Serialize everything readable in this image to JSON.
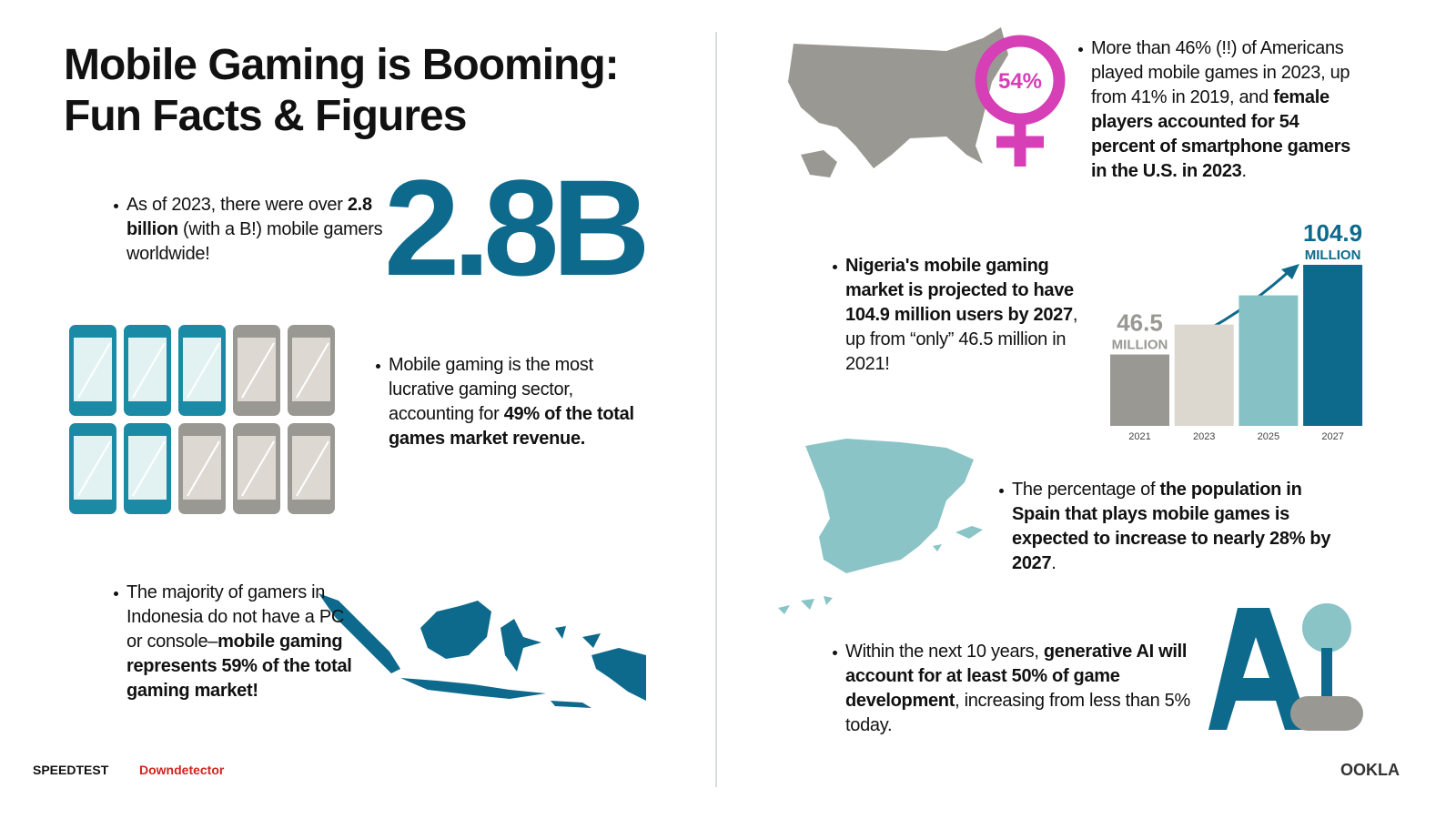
{
  "header": {
    "title_lines": [
      "Mobile Gaming is Booming:",
      "Fun Facts & Figures"
    ]
  },
  "big_stat": "2.8B",
  "usa_stat": "54%",
  "facts": [
    {
      "segments": [
        {
          "text": "As of 2023, there were over ",
          "bold": false
        },
        {
          "text": "2.8 billion",
          "bold": true
        },
        {
          "text": " (with a B!) mobile gamers worldwide!",
          "bold": false
        }
      ]
    },
    {
      "segments": [
        {
          "text": "Mobile gaming is the most lucrative gaming sector, accounting for ",
          "bold": false
        },
        {
          "text": "49% of the total games market revenue.",
          "bold": true
        }
      ]
    },
    {
      "segments": [
        {
          "text": "The majority of gamers in Indonesia do not have a PC or console–",
          "bold": false
        },
        {
          "text": "mobile gaming represents 59% of the total gaming market!",
          "bold": true
        }
      ]
    },
    {
      "segments": [
        {
          "text": "More than 46% (!!) of Americans played mobile games in 2023, up from 41% in 2019, and ",
          "bold": false
        },
        {
          "text": "female players accounted for 54 percent of smartphone gamers in the U.S. in 2023",
          "bold": true
        },
        {
          "text": ".",
          "bold": false
        }
      ]
    },
    {
      "segments": [
        {
          "text": "Nigeria's mobile gaming market is projected to have 104.9 million users by 2027",
          "bold": true
        },
        {
          "text": ", up from “only” 46.5 million in 2021!",
          "bold": false
        }
      ]
    },
    {
      "segments": [
        {
          "text": "The percentage of ",
          "bold": false
        },
        {
          "text": "the population in Spain that plays mobile games is expected to increase to nearly 28% by 2027",
          "bold": true
        },
        {
          "text": ".",
          "bold": false
        }
      ]
    },
    {
      "segments": [
        {
          "text": "Within the next 10 years, ",
          "bold": false
        },
        {
          "text": "generative AI will account for at least 50% of game development",
          "bold": true
        },
        {
          "text": ", increasing from less than 5% today.",
          "bold": false
        }
      ]
    }
  ],
  "chart_data": {
    "type": "bar",
    "categories": [
      "2021",
      "2023",
      "2025",
      "2027"
    ],
    "values": [
      46.5,
      66,
      85,
      104.9
    ],
    "value_labels": [
      "46.5",
      null,
      null,
      "104.9"
    ],
    "unit_label": "MILLION",
    "colors": [
      "#9a9893",
      "#dcd8d0",
      "#86c2c5",
      "#0e6a8c"
    ]
  },
  "footer": {
    "speedtest": "SPEEDTEST",
    "downdetector": "Downdetector",
    "ookla": "OOKLA"
  }
}
